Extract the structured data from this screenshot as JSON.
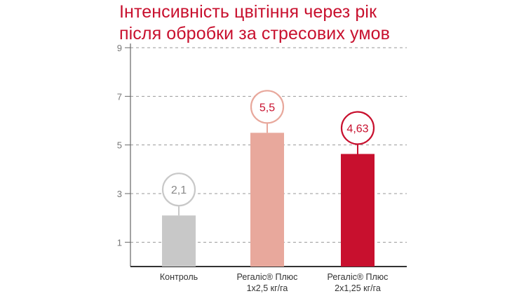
{
  "chart_data": {
    "type": "bar",
    "title": "Інтенсивність цвітіння через рік після обробки за стресових умов",
    "categories": [
      [
        "Контроль"
      ],
      [
        "Регаліс® Плюс",
        "1х2,5 кг/га"
      ],
      [
        "Регаліс® Плюс",
        "2х1,25 кг/га"
      ]
    ],
    "values": [
      2.1,
      5.5,
      4.63
    ],
    "data_labels": [
      "2,1",
      "5,5",
      "4,63"
    ],
    "ylim": [
      0,
      9
    ],
    "yticks": [
      1,
      3,
      5,
      7,
      9
    ],
    "ytick_labels": [
      "1",
      "3",
      "5",
      "7",
      "9"
    ],
    "grid": true,
    "colors": {
      "bars": [
        "#c8c8c8",
        "#e8a89c",
        "#c8102e"
      ],
      "circle_borders": [
        "#c8c8c8",
        "#e8a89c",
        "#c8102e"
      ],
      "label_text": [
        "#888888",
        "#c8102e",
        "#c8102e"
      ],
      "title": "#c8102e",
      "grid": "#9a9a9a",
      "axis": "#666666"
    }
  }
}
